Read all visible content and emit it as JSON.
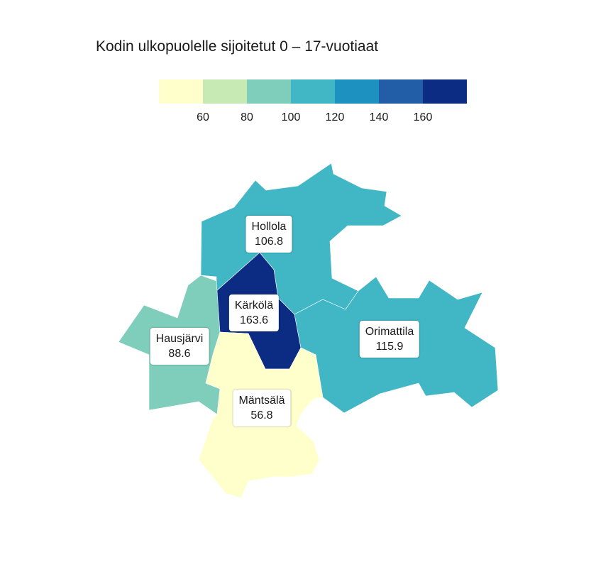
{
  "title": "Kodin ulkopuolelle sijoitetut 0 – 17-vuotiaat",
  "legend": {
    "colors": [
      "#ffffcc",
      "#c7e9b4",
      "#7fcdbb",
      "#41b6c4",
      "#1d91c0",
      "#225ea8",
      "#0c2c84"
    ],
    "tick_labels": [
      "60",
      "80",
      "100",
      "120",
      "140",
      "160"
    ]
  },
  "chart_data": {
    "type": "choropleth",
    "title": "Kodin ulkopuolelle sijoitetut 0 – 17-vuotiaat",
    "breaks": [
      60,
      80,
      100,
      120,
      140,
      160
    ],
    "regions": [
      {
        "name": "Hollola",
        "value": 106.8,
        "value_label": "106.8",
        "color": "#41b6c4"
      },
      {
        "name": "Kärkölä",
        "value": 163.6,
        "value_label": "163.6",
        "color": "#0c2c84"
      },
      {
        "name": "Hausjärvi",
        "value": 88.6,
        "value_label": "88.6",
        "color": "#7fcdbb"
      },
      {
        "name": "Orimattila",
        "value": 115.9,
        "value_label": "115.9",
        "color": "#41b6c4"
      },
      {
        "name": "Mäntsälä",
        "value": 56.8,
        "value_label": "56.8",
        "color": "#ffffcc"
      }
    ]
  }
}
